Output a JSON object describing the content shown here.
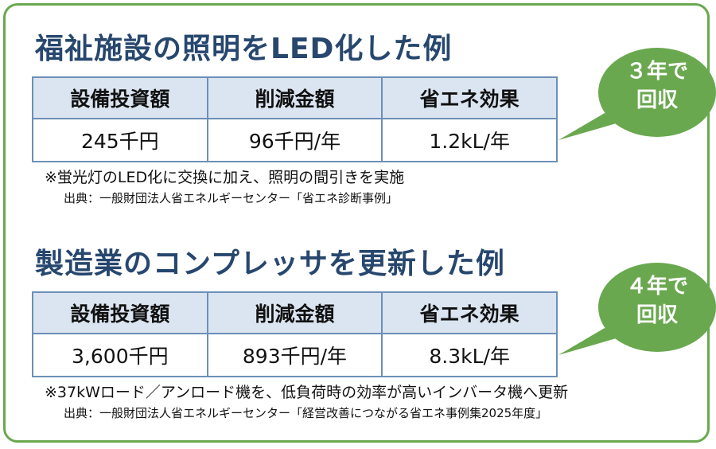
{
  "colors": {
    "frame_border": "#6aa84f",
    "title_text": "#27476e",
    "table_header_bg": "#dbe5f1",
    "table_border": "#6d8fb6",
    "bubble_fill": "#6aa84f"
  },
  "cases": [
    {
      "title": "福祉施設の照明をLED化した例",
      "headers": [
        "設備投資額",
        "削減金額",
        "省エネ効果"
      ],
      "values": [
        "245千円",
        "96千円/年",
        "1.2kL/年"
      ],
      "note": "※蛍光灯のLED化に交換に加え、照明の間引きを実施",
      "source": "出典：一般財団法人省エネルギーセンター「省エネ診断事例」",
      "payback_line1": "３年で",
      "payback_line2": "回収"
    },
    {
      "title": "製造業のコンプレッサを更新した例",
      "headers": [
        "設備投資額",
        "削減金額",
        "省エネ効果"
      ],
      "values": [
        "3,600千円",
        "893千円/年",
        "8.3kL/年"
      ],
      "note": "※37kWロード／アンロード機を、低負荷時の効率が高いインバータ機へ更新",
      "source": "出典：一般財団法人省エネルギーセンター「経営改善につながる省エネ事例集2025年度」",
      "payback_line1": "４年で",
      "payback_line2": "回収"
    }
  ]
}
